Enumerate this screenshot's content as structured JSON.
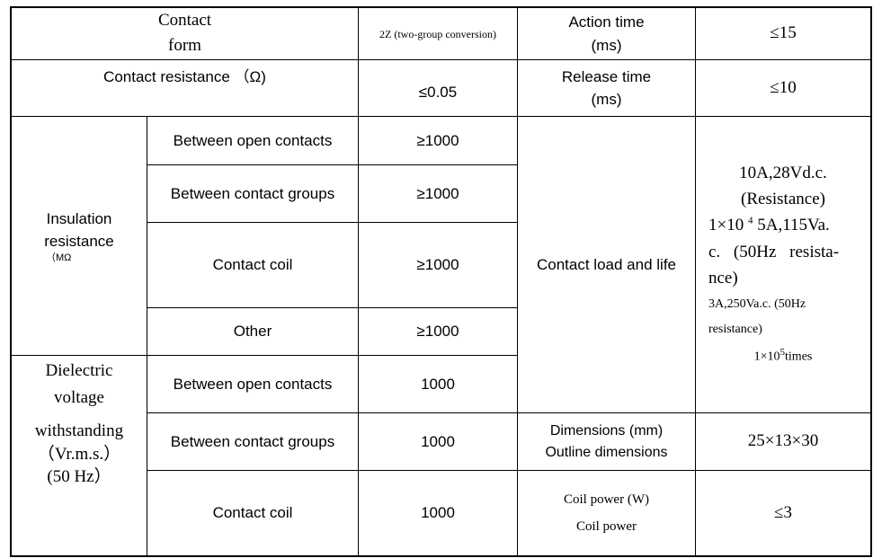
{
  "table": {
    "contact_form": {
      "label_line1": "Contact",
      "label_line2": "form",
      "value": "2Z (two-group conversion)"
    },
    "action_time": {
      "label_line1": "Action time",
      "label_line2": "(ms)",
      "value": "≤15"
    },
    "contact_resistance": {
      "label": "Contact resistance （Ω)",
      "value": "≤0.05"
    },
    "release_time": {
      "label_line1": "Release time",
      "label_line2": "(ms)",
      "value": "≤10"
    },
    "insulation": {
      "label_line1": "Insulation",
      "label_line2": "resistance",
      "unit": "（MΩ",
      "rows": [
        {
          "label": "Between open contacts",
          "value": "≥1000"
        },
        {
          "label": "Between contact groups",
          "value": "≥1000"
        },
        {
          "label": "Contact coil",
          "value": "≥1000"
        },
        {
          "label": "Other",
          "value": "≥1000"
        }
      ]
    },
    "dielectric": {
      "label_lines": [
        "Dielectric",
        "voltage",
        "withstanding",
        "（Vr.m.s.）",
        "(50 Hz）"
      ],
      "rows": [
        {
          "label": "Between open contacts",
          "value": "1000"
        },
        {
          "label": "Between contact groups",
          "value": "1000"
        },
        {
          "label": "Contact coil",
          "value": "1000"
        }
      ]
    },
    "contact_load": {
      "label": "Contact load and life",
      "line1": "10A,28Vd.c.",
      "line2": "(Resistance)",
      "line3a": "1×10",
      "line3sup": "4",
      "line3b": " 5A,115Va.",
      "line4": "c. (50Hz resista-",
      "line5": "nce)",
      "line6": "3A,250Va.c. (50Hz",
      "line7": "resistance)",
      "line8a": "1×10",
      "line8sup": "5",
      "line8b": "times"
    },
    "dimensions": {
      "label_line1": "Dimensions (mm)",
      "label_line2": "Outline dimensions",
      "value": "25×13×30"
    },
    "coil_power": {
      "label_line1": "Coil power (W)",
      "label_line2": "Coil power",
      "value": "≤3"
    }
  }
}
